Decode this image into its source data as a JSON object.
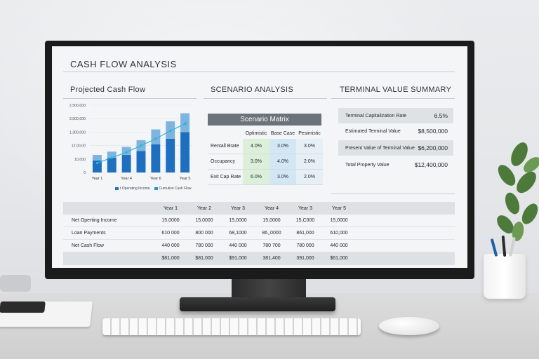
{
  "app": {
    "title": "CASH FLOW ANALYSIS"
  },
  "colors": {
    "accent_dark": "#1e6fc0",
    "accent_light": "#7fb4e0",
    "trend": "#2ab5d4",
    "matrix_header": "#6b7279"
  },
  "projected": {
    "title": "Projected Cash Flow",
    "legend": [
      "t Operating Income",
      "Cumutive Cash Flow"
    ]
  },
  "chart_data": {
    "type": "bar",
    "title": "Projected Cash Flow",
    "y_tick_labels": [
      "2,500,000",
      "3,500,000",
      "1,300,000",
      "12,00,00",
      "10,000",
      "0"
    ],
    "x_tick_labels": [
      "Year 1",
      "Year 4",
      "Year 6",
      "Year 5"
    ],
    "bars": [
      {
        "dark": 18,
        "light": 8
      },
      {
        "dark": 22,
        "light": 9
      },
      {
        "dark": 26,
        "light": 12
      },
      {
        "dark": 32,
        "light": 16
      },
      {
        "dark": 42,
        "light": 22
      },
      {
        "dark": 50,
        "light": 26
      },
      {
        "dark": 60,
        "light": 28
      }
    ],
    "trend": [
      14,
      22,
      30,
      40,
      50,
      62,
      72
    ],
    "ylim": [
      0,
      100
    ],
    "legend_position": "bottom"
  },
  "scenario": {
    "title": "SCENARIO ANALYSIS",
    "matrix_title": "Scenario Matrix",
    "columns": [
      "Optimistic",
      "Base Case",
      "Pesimistic"
    ],
    "rows": [
      {
        "label": "Rentall Brate",
        "values": [
          "4.0%",
          "3.0%",
          "3.0%"
        ]
      },
      {
        "label": "Occupancy",
        "values": [
          "3.0%",
          "4.0%",
          "2.0%"
        ]
      },
      {
        "label": "Exit Cap Rate",
        "values": [
          "6.0%",
          "3.0%",
          "2.0%"
        ]
      }
    ]
  },
  "terminal": {
    "title": "TERMINAL VALUE SUMMARY",
    "rows": [
      {
        "label": "Terminal Capitalization Rate",
        "value": "6.5%"
      },
      {
        "label": "Estimated Terminal Value",
        "value": "$8,500,000"
      },
      {
        "label": "Present Value of Terminal Value",
        "value": "$6,200,000"
      },
      {
        "label": "Total Property Value",
        "value": "$12,400,000"
      }
    ]
  },
  "cashflow_table": {
    "headers": [
      "Year 1",
      "Year 2",
      "Year 3",
      "Year 4",
      "Year 3",
      "Year 5"
    ],
    "rows": [
      {
        "label": "Net Operting Income",
        "values": [
          "15,0000",
          "15,0000",
          "15,0000",
          "15,0000",
          "15,C000",
          "15,0000"
        ]
      },
      {
        "label": "Loan Payments",
        "values": [
          "610 000",
          "800 000",
          "68,1000",
          "86,,0000",
          "861,000",
          "610,000"
        ]
      },
      {
        "label": "Net Cash Flow",
        "values": [
          "440 000",
          "780 000",
          "440 000",
          "780 700",
          "780 000",
          "440 000"
        ]
      },
      {
        "label": "",
        "values": [
          "$81,000",
          "$81,000",
          "$91,000",
          "381,400",
          "391,000",
          "$61,000"
        ]
      }
    ]
  }
}
